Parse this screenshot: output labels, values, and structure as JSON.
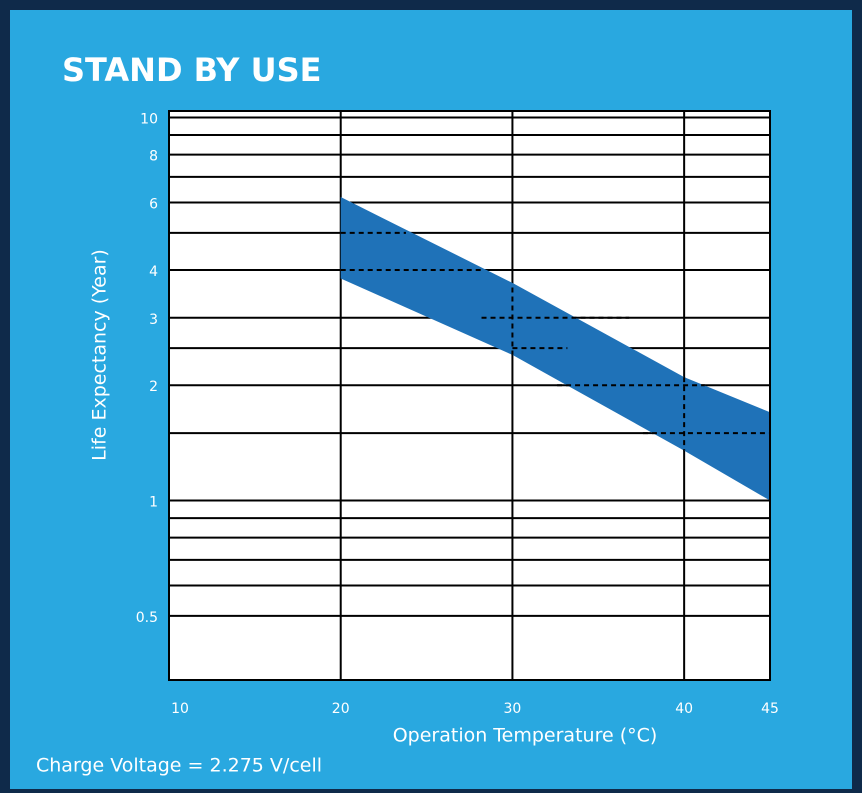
{
  "chart_data": {
    "type": "band",
    "title": "STAND BY USE",
    "x_label": "Operation Temperature (°C)",
    "y_label": "Life Expectancy (Year)",
    "note": "Charge Voltage = 2.275 V/cell",
    "x": [
      20,
      30,
      40,
      45
    ],
    "series": [
      {
        "name": "upper",
        "values": [
          6.2,
          3.7,
          2.1,
          1.7
        ]
      },
      {
        "name": "lower",
        "values": [
          3.8,
          2.4,
          1.35,
          1.0
        ]
      }
    ],
    "color": "#1f72b8",
    "xlim": [
      10,
      45
    ],
    "xticks": [
      10,
      20,
      30,
      40,
      45
    ],
    "xgrid": [
      20,
      30,
      40
    ],
    "ylim": [
      0.34,
      10.4
    ],
    "log_y": true,
    "yticks": [
      0.5,
      1,
      2,
      3,
      4,
      6,
      8,
      10
    ],
    "ygrid_minor": [
      0.6,
      0.7,
      0.8,
      0.9,
      1.5,
      2.5,
      5,
      7,
      9
    ],
    "dashed": [
      {
        "x": [
          20,
          23.8
        ],
        "y": [
          5,
          5
        ]
      },
      {
        "x": [
          20,
          28.2
        ],
        "y": [
          4,
          4
        ]
      },
      {
        "x": [
          30,
          30
        ],
        "y": [
          3.6,
          2.4
        ]
      },
      {
        "x": [
          28.2,
          36.8
        ],
        "y": [
          3,
          3
        ]
      },
      {
        "x": [
          30,
          33.2
        ],
        "y": [
          2.5,
          2.5
        ]
      },
      {
        "x": [
          40,
          40
        ],
        "y": [
          2.1,
          1.35
        ]
      },
      {
        "x": [
          32.6,
          41.2
        ],
        "y": [
          2,
          2
        ]
      },
      {
        "x": [
          37.6,
          45
        ],
        "y": [
          1.5,
          1.5
        ]
      }
    ]
  }
}
